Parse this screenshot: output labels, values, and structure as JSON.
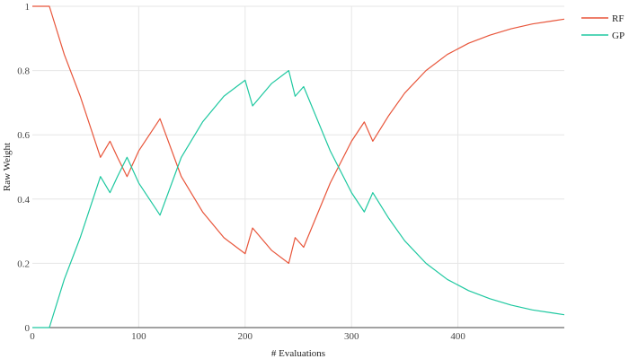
{
  "chart_data": {
    "type": "line",
    "xlabel": "# Evaluations",
    "ylabel": "Raw Weight",
    "xlim": [
      0,
      500
    ],
    "ylim": [
      0,
      1
    ],
    "x_ticks": [
      0,
      100,
      200,
      300,
      400
    ],
    "y_ticks": [
      0,
      0.2,
      0.4,
      0.6,
      0.8,
      1
    ],
    "y_tick_labels": [
      "0",
      "0.2",
      "0.4",
      "0.6",
      "0.8",
      "1"
    ],
    "grid": true,
    "legend_position": "top-right",
    "series": [
      {
        "name": "RF",
        "color": "#e8553a",
        "x": [
          0,
          16,
          30,
          45,
          55,
          64,
          73,
          80,
          89,
          100,
          120,
          140,
          160,
          180,
          200,
          207,
          225,
          241,
          247,
          255,
          265,
          280,
          300,
          312,
          320,
          335,
          350,
          370,
          390,
          410,
          430,
          450,
          470,
          490,
          500
        ],
        "y": [
          1,
          1,
          0.85,
          0.72,
          0.62,
          0.53,
          0.58,
          0.53,
          0.47,
          0.55,
          0.65,
          0.47,
          0.36,
          0.28,
          0.23,
          0.31,
          0.24,
          0.2,
          0.28,
          0.25,
          0.33,
          0.45,
          0.58,
          0.64,
          0.58,
          0.66,
          0.73,
          0.8,
          0.85,
          0.885,
          0.91,
          0.93,
          0.945,
          0.955,
          0.96
        ]
      },
      {
        "name": "GP",
        "color": "#1ec8a0",
        "x": [
          0,
          16,
          30,
          45,
          55,
          64,
          73,
          80,
          89,
          100,
          120,
          140,
          160,
          180,
          200,
          207,
          225,
          241,
          247,
          255,
          265,
          280,
          300,
          312,
          320,
          335,
          350,
          370,
          390,
          410,
          430,
          450,
          470,
          490,
          500
        ],
        "y": [
          0,
          0,
          0.15,
          0.28,
          0.38,
          0.47,
          0.42,
          0.47,
          0.53,
          0.45,
          0.35,
          0.53,
          0.64,
          0.72,
          0.77,
          0.69,
          0.76,
          0.8,
          0.72,
          0.75,
          0.67,
          0.55,
          0.42,
          0.36,
          0.42,
          0.34,
          0.27,
          0.2,
          0.15,
          0.115,
          0.09,
          0.07,
          0.055,
          0.045,
          0.04
        ]
      }
    ]
  }
}
